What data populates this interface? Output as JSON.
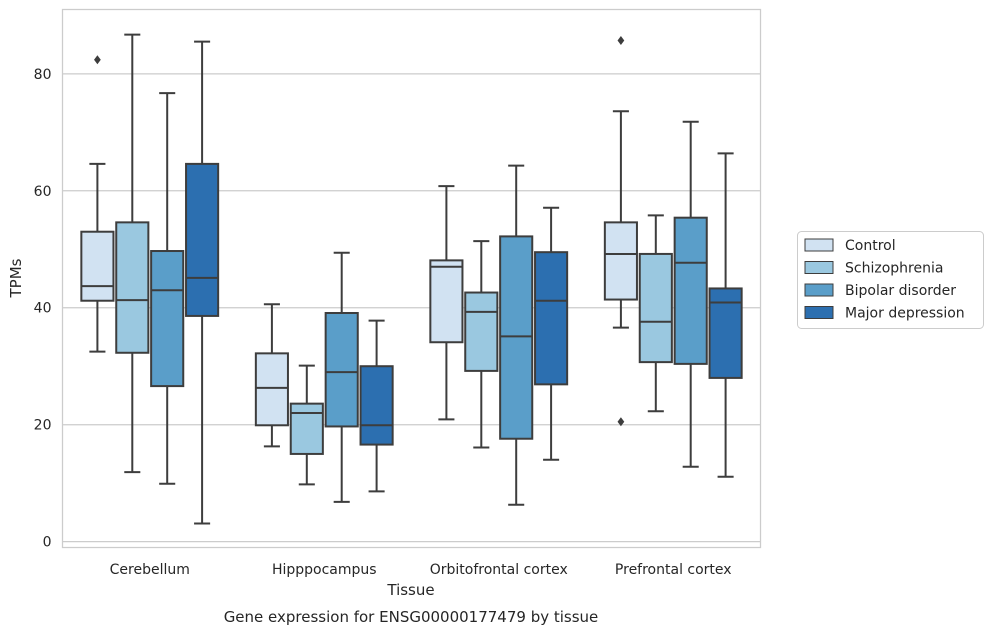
{
  "chart_data": {
    "type": "boxplot",
    "caption": "Gene expression for ENSG00000177479 by tissue",
    "xlabel": "Tissue",
    "ylabel": "TPMs",
    "ylim": [
      -1,
      91
    ],
    "yticks": [
      0,
      20,
      40,
      60,
      80
    ],
    "grid": "horizontal",
    "legend_position": "right",
    "categories": [
      "Cerebellum",
      "Hipppocampus",
      "Orbitofrontal cortex",
      "Prefrontal cortex"
    ],
    "series": [
      {
        "name": "Control",
        "color": "#d1e2f2",
        "boxes": [
          {
            "whislo": 32.5,
            "q1": 41.2,
            "med": 43.7,
            "q3": 53.0,
            "whishi": 64.6,
            "fliers": [
              82.4
            ]
          },
          {
            "whislo": 16.3,
            "q1": 19.9,
            "med": 26.3,
            "q3": 32.2,
            "whishi": 40.6,
            "fliers": []
          },
          {
            "whislo": 20.9,
            "q1": 34.1,
            "med": 47.0,
            "q3": 48.1,
            "whishi": 60.8,
            "fliers": []
          },
          {
            "whislo": 36.6,
            "q1": 41.4,
            "med": 49.2,
            "q3": 54.6,
            "whishi": 73.6,
            "fliers": [
              20.5,
              85.7
            ]
          }
        ]
      },
      {
        "name": "Schizophrenia",
        "color": "#9ac8e0",
        "boxes": [
          {
            "whislo": 11.9,
            "q1": 32.3,
            "med": 41.3,
            "q3": 54.6,
            "whishi": 86.7,
            "fliers": []
          },
          {
            "whislo": 9.8,
            "q1": 15.0,
            "med": 22.0,
            "q3": 23.6,
            "whishi": 30.1,
            "fliers": []
          },
          {
            "whislo": 16.1,
            "q1": 29.2,
            "med": 39.3,
            "q3": 42.6,
            "whishi": 51.4,
            "fliers": []
          },
          {
            "whislo": 22.3,
            "q1": 30.7,
            "med": 37.6,
            "q3": 49.2,
            "whishi": 55.8,
            "fliers": []
          }
        ]
      },
      {
        "name": "Bipolar disorder",
        "color": "#5a9ec9",
        "boxes": [
          {
            "whislo": 9.9,
            "q1": 26.6,
            "med": 43.0,
            "q3": 49.7,
            "whishi": 76.7,
            "fliers": []
          },
          {
            "whislo": 6.8,
            "q1": 19.7,
            "med": 29.0,
            "q3": 39.1,
            "whishi": 49.4,
            "fliers": []
          },
          {
            "whislo": 6.3,
            "q1": 17.6,
            "med": 35.1,
            "q3": 52.2,
            "whishi": 64.3,
            "fliers": []
          },
          {
            "whislo": 12.8,
            "q1": 30.4,
            "med": 47.7,
            "q3": 55.4,
            "whishi": 71.8,
            "fliers": []
          }
        ]
      },
      {
        "name": "Major depression",
        "color": "#2c6fb0",
        "boxes": [
          {
            "whislo": 3.1,
            "q1": 38.6,
            "med": 45.1,
            "q3": 64.6,
            "whishi": 85.5,
            "fliers": []
          },
          {
            "whislo": 8.6,
            "q1": 16.6,
            "med": 19.9,
            "q3": 30.0,
            "whishi": 37.8,
            "fliers": []
          },
          {
            "whislo": 14.0,
            "q1": 26.9,
            "med": 41.2,
            "q3": 49.5,
            "whishi": 57.1,
            "fliers": []
          },
          {
            "whislo": 11.1,
            "q1": 28.0,
            "med": 40.9,
            "q3": 43.3,
            "whishi": 66.4,
            "fliers": []
          }
        ]
      }
    ]
  }
}
